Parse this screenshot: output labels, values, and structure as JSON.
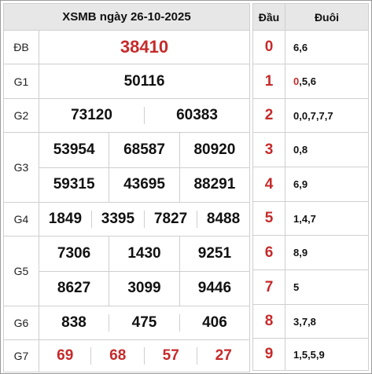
{
  "title": "XSMB ngày 26-10-2025",
  "prizes": {
    "db": {
      "label": "ĐB",
      "numbers": [
        "38410"
      ]
    },
    "g1": {
      "label": "G1",
      "numbers": [
        "50116"
      ]
    },
    "g2": {
      "label": "G2",
      "numbers": [
        "73120",
        "60383"
      ]
    },
    "g3": {
      "label": "G3",
      "numbers": [
        "53954",
        "68587",
        "80920",
        "59315",
        "43695",
        "88291"
      ]
    },
    "g4": {
      "label": "G4",
      "numbers": [
        "1849",
        "3395",
        "7827",
        "8488"
      ]
    },
    "g5": {
      "label": "G5",
      "numbers": [
        "7306",
        "1430",
        "9251",
        "8627",
        "3099",
        "9446"
      ]
    },
    "g6": {
      "label": "G6",
      "numbers": [
        "838",
        "475",
        "406"
      ]
    },
    "g7": {
      "label": "G7",
      "numbers": [
        "69",
        "68",
        "57",
        "27"
      ]
    }
  },
  "loto": {
    "head_label": "Đầu",
    "tail_label": "Đuôi",
    "rows": [
      {
        "head": "0",
        "tail_hl": "",
        "tail": "6,6"
      },
      {
        "head": "1",
        "tail_hl": "0",
        "tail": ",5,6"
      },
      {
        "head": "2",
        "tail_hl": "",
        "tail": "0,0,7,7,7"
      },
      {
        "head": "3",
        "tail_hl": "",
        "tail": "0,8"
      },
      {
        "head": "4",
        "tail_hl": "",
        "tail": "6,9"
      },
      {
        "head": "5",
        "tail_hl": "",
        "tail": "1,4,7"
      },
      {
        "head": "6",
        "tail_hl": "",
        "tail": "8,9"
      },
      {
        "head": "7",
        "tail_hl": "",
        "tail": "5"
      },
      {
        "head": "8",
        "tail_hl": "",
        "tail": "3,7,8"
      },
      {
        "head": "9",
        "tail_hl": "",
        "tail": "1,5,5,9"
      }
    ]
  },
  "colors": {
    "accent_red": "#c62a2a",
    "header_bg": "#e7e7e7",
    "border": "#cfcfcf"
  }
}
